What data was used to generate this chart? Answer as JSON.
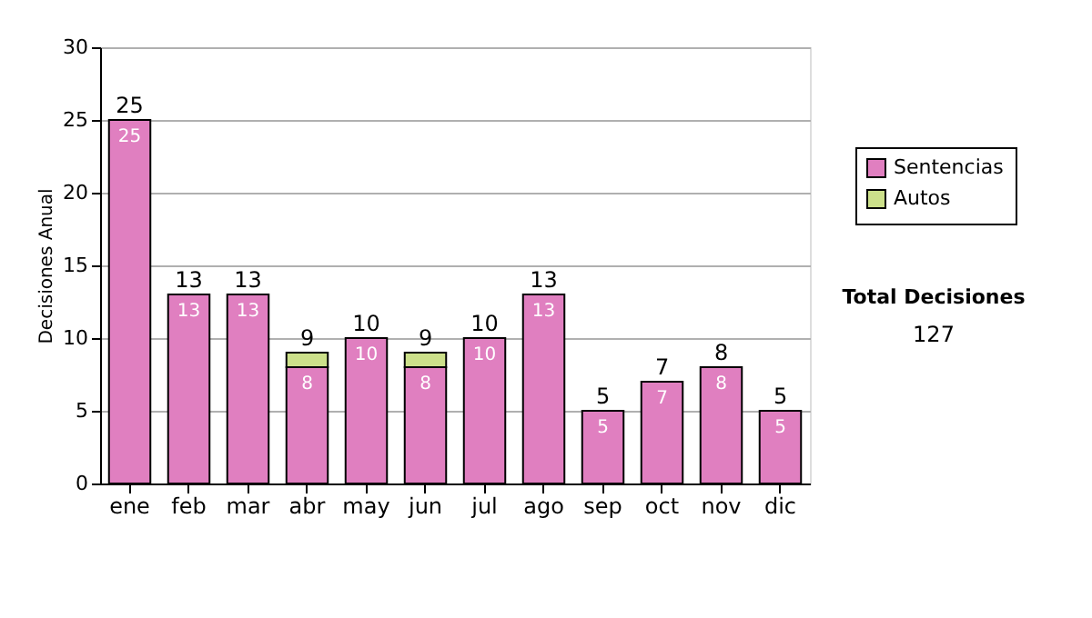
{
  "chart_data": {
    "type": "bar",
    "stacked": true,
    "ylabel": "Decisiones Anual",
    "categories": [
      "ene",
      "feb",
      "mar",
      "abr",
      "may",
      "jun",
      "jul",
      "ago",
      "sep",
      "oct",
      "nov",
      "dic"
    ],
    "series": [
      {
        "name": "Sentencias",
        "color": "#e07fc0",
        "values": [
          25,
          13,
          13,
          8,
          10,
          8,
          10,
          13,
          5,
          7,
          8,
          5
        ],
        "value_labels": [
          "25",
          "13",
          "13",
          "8",
          "10",
          "8",
          "10",
          "13",
          "5",
          "7",
          "8",
          "5"
        ]
      },
      {
        "name": "Autos",
        "color": "#cce08a",
        "values": [
          null,
          null,
          null,
          1,
          null,
          1,
          null,
          null,
          null,
          null,
          null,
          null
        ]
      }
    ],
    "totals": [
      "25",
      "13",
      "13",
      "9",
      "10",
      "9",
      "10",
      "13",
      "5",
      "7",
      "8",
      "5"
    ],
    "ylim": [
      0,
      30
    ],
    "yticks": [
      0,
      5,
      10,
      15,
      20,
      25,
      30
    ],
    "grid": "y",
    "legend": "top right",
    "annotations": [
      "Total Decisiones",
      "127"
    ]
  }
}
